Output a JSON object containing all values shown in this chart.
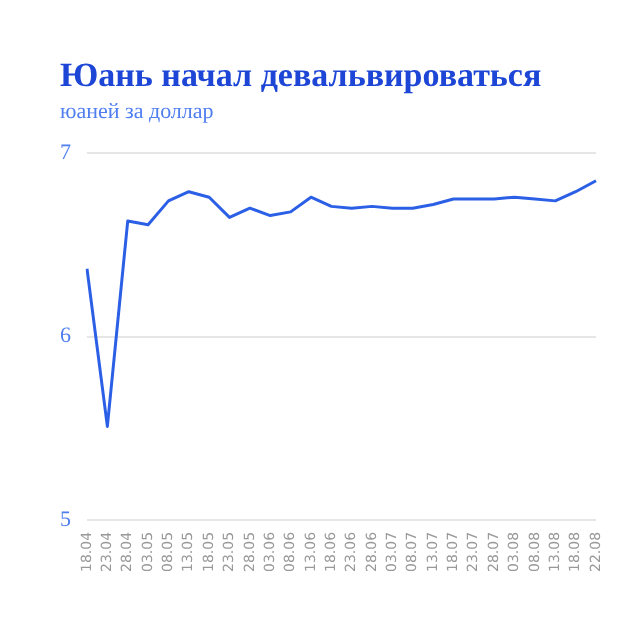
{
  "chart_data": {
    "type": "line",
    "title": "Юань начал девальвироваться",
    "subtitle": "юаней за доллар",
    "categories": [
      "18.04",
      "23.04",
      "28.04",
      "03.05",
      "08.05",
      "13.05",
      "18.05",
      "23.05",
      "28.05",
      "03.06",
      "08.06",
      "13.06",
      "18.06",
      "23.06",
      "28.06",
      "03.07",
      "08.07",
      "13.07",
      "18.07",
      "23.07",
      "28.07",
      "03.08",
      "08.08",
      "13.08",
      "18.08",
      "22.08"
    ],
    "series": [
      {
        "color": "#2b5fe6",
        "values": [
          6.37,
          5.51,
          6.63,
          6.61,
          6.74,
          6.79,
          6.76,
          6.65,
          6.7,
          6.66,
          6.68,
          6.76,
          6.71,
          6.7,
          6.71,
          6.7,
          6.7,
          6.72,
          6.75,
          6.75,
          6.75,
          6.76,
          6.75,
          6.74,
          6.79,
          6.85
        ]
      }
    ],
    "ylim": [
      5,
      7
    ],
    "yticks": [
      5,
      6,
      7
    ],
    "grid": "y",
    "legend": false,
    "marker": "none",
    "line_style": "solid"
  }
}
